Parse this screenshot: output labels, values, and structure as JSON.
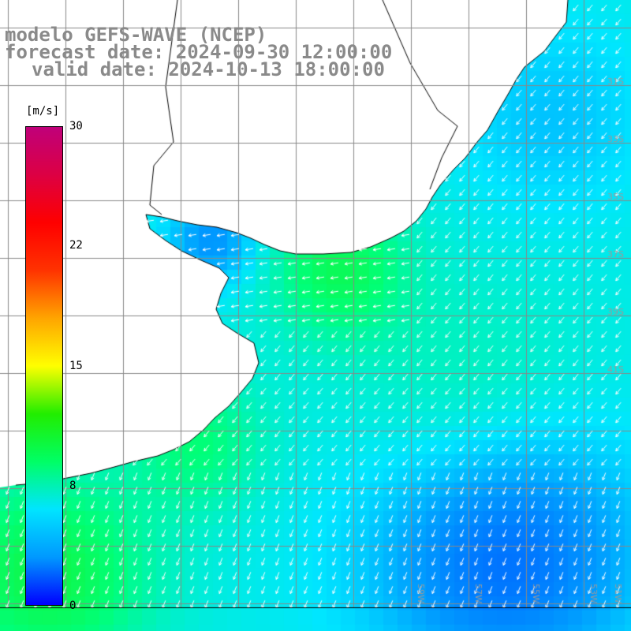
{
  "title": {
    "model": "modelo GEFS-WAVE (NCEP)",
    "forecast": "forecast date: 2024-09-30 12:00:00",
    "valid": "valid date: 2024-10-13 18:00:00"
  },
  "legend": {
    "unit": "[m/s]",
    "ticks": [
      "30",
      "22",
      "15",
      "8",
      "0"
    ],
    "tick_values": [
      30,
      22,
      15,
      8,
      0
    ],
    "range": [
      0,
      30
    ],
    "colors": [
      "#0000ff",
      "#0099ff",
      "#00e5ff",
      "#00ff66",
      "#22ee00",
      "#ffff00",
      "#ffa500",
      "#ff3300",
      "#ff0000",
      "#dd0044",
      "#c0007a"
    ]
  },
  "map": {
    "lat_labels": [
      "31S",
      "33S",
      "35S",
      "37S",
      "39S",
      "41S"
    ],
    "lon_labels": [
      "59W",
      "57W",
      "55W",
      "53W",
      "51W"
    ],
    "land_color": "#ffffff",
    "grid_color": "#888888",
    "coast_color": "#000000"
  }
}
